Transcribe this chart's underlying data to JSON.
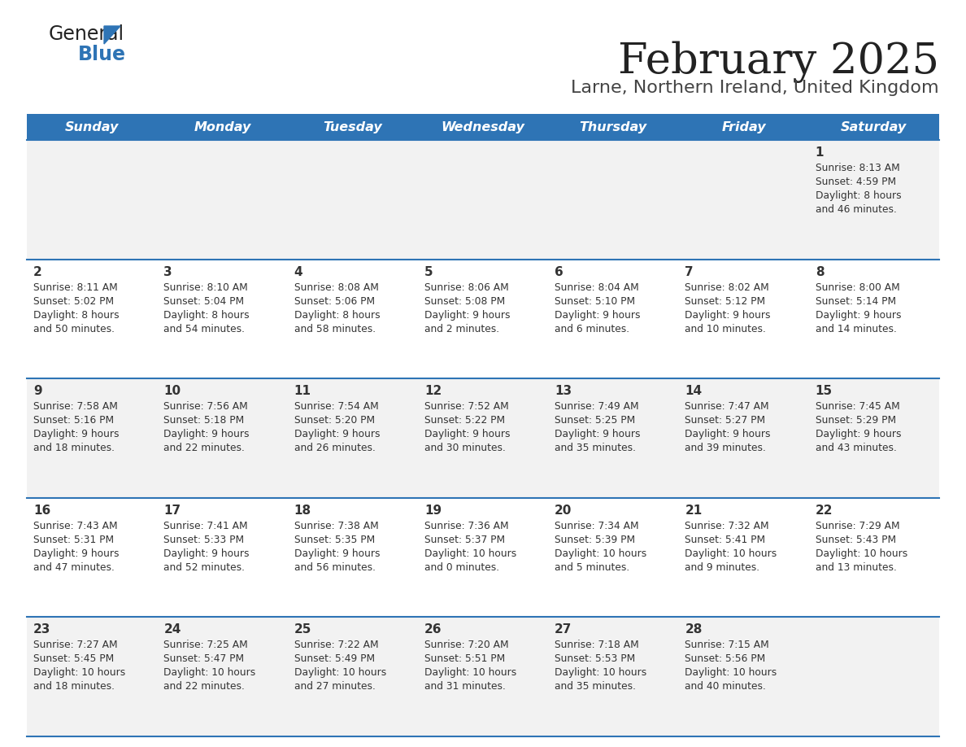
{
  "title": "February 2025",
  "subtitle": "Larne, Northern Ireland, United Kingdom",
  "days_of_week": [
    "Sunday",
    "Monday",
    "Tuesday",
    "Wednesday",
    "Thursday",
    "Friday",
    "Saturday"
  ],
  "header_bg": "#2E74B5",
  "header_text": "#FFFFFF",
  "row_bg_even": "#F2F2F2",
  "row_bg_odd": "#FFFFFF",
  "cell_text": "#333333",
  "separator_color": "#2E74B5",
  "title_color": "#222222",
  "subtitle_color": "#444444",
  "logo_color1": "#222222",
  "logo_color2": "#2E74B5",
  "calendar_data": [
    [
      {
        "day": "",
        "sunrise": "",
        "sunset": "",
        "daylight": ""
      },
      {
        "day": "",
        "sunrise": "",
        "sunset": "",
        "daylight": ""
      },
      {
        "day": "",
        "sunrise": "",
        "sunset": "",
        "daylight": ""
      },
      {
        "day": "",
        "sunrise": "",
        "sunset": "",
        "daylight": ""
      },
      {
        "day": "",
        "sunrise": "",
        "sunset": "",
        "daylight": ""
      },
      {
        "day": "",
        "sunrise": "",
        "sunset": "",
        "daylight": ""
      },
      {
        "day": "1",
        "sunrise": "Sunrise: 8:13 AM",
        "sunset": "Sunset: 4:59 PM",
        "daylight": "Daylight: 8 hours\nand 46 minutes."
      }
    ],
    [
      {
        "day": "2",
        "sunrise": "Sunrise: 8:11 AM",
        "sunset": "Sunset: 5:02 PM",
        "daylight": "Daylight: 8 hours\nand 50 minutes."
      },
      {
        "day": "3",
        "sunrise": "Sunrise: 8:10 AM",
        "sunset": "Sunset: 5:04 PM",
        "daylight": "Daylight: 8 hours\nand 54 minutes."
      },
      {
        "day": "4",
        "sunrise": "Sunrise: 8:08 AM",
        "sunset": "Sunset: 5:06 PM",
        "daylight": "Daylight: 8 hours\nand 58 minutes."
      },
      {
        "day": "5",
        "sunrise": "Sunrise: 8:06 AM",
        "sunset": "Sunset: 5:08 PM",
        "daylight": "Daylight: 9 hours\nand 2 minutes."
      },
      {
        "day": "6",
        "sunrise": "Sunrise: 8:04 AM",
        "sunset": "Sunset: 5:10 PM",
        "daylight": "Daylight: 9 hours\nand 6 minutes."
      },
      {
        "day": "7",
        "sunrise": "Sunrise: 8:02 AM",
        "sunset": "Sunset: 5:12 PM",
        "daylight": "Daylight: 9 hours\nand 10 minutes."
      },
      {
        "day": "8",
        "sunrise": "Sunrise: 8:00 AM",
        "sunset": "Sunset: 5:14 PM",
        "daylight": "Daylight: 9 hours\nand 14 minutes."
      }
    ],
    [
      {
        "day": "9",
        "sunrise": "Sunrise: 7:58 AM",
        "sunset": "Sunset: 5:16 PM",
        "daylight": "Daylight: 9 hours\nand 18 minutes."
      },
      {
        "day": "10",
        "sunrise": "Sunrise: 7:56 AM",
        "sunset": "Sunset: 5:18 PM",
        "daylight": "Daylight: 9 hours\nand 22 minutes."
      },
      {
        "day": "11",
        "sunrise": "Sunrise: 7:54 AM",
        "sunset": "Sunset: 5:20 PM",
        "daylight": "Daylight: 9 hours\nand 26 minutes."
      },
      {
        "day": "12",
        "sunrise": "Sunrise: 7:52 AM",
        "sunset": "Sunset: 5:22 PM",
        "daylight": "Daylight: 9 hours\nand 30 minutes."
      },
      {
        "day": "13",
        "sunrise": "Sunrise: 7:49 AM",
        "sunset": "Sunset: 5:25 PM",
        "daylight": "Daylight: 9 hours\nand 35 minutes."
      },
      {
        "day": "14",
        "sunrise": "Sunrise: 7:47 AM",
        "sunset": "Sunset: 5:27 PM",
        "daylight": "Daylight: 9 hours\nand 39 minutes."
      },
      {
        "day": "15",
        "sunrise": "Sunrise: 7:45 AM",
        "sunset": "Sunset: 5:29 PM",
        "daylight": "Daylight: 9 hours\nand 43 minutes."
      }
    ],
    [
      {
        "day": "16",
        "sunrise": "Sunrise: 7:43 AM",
        "sunset": "Sunset: 5:31 PM",
        "daylight": "Daylight: 9 hours\nand 47 minutes."
      },
      {
        "day": "17",
        "sunrise": "Sunrise: 7:41 AM",
        "sunset": "Sunset: 5:33 PM",
        "daylight": "Daylight: 9 hours\nand 52 minutes."
      },
      {
        "day": "18",
        "sunrise": "Sunrise: 7:38 AM",
        "sunset": "Sunset: 5:35 PM",
        "daylight": "Daylight: 9 hours\nand 56 minutes."
      },
      {
        "day": "19",
        "sunrise": "Sunrise: 7:36 AM",
        "sunset": "Sunset: 5:37 PM",
        "daylight": "Daylight: 10 hours\nand 0 minutes."
      },
      {
        "day": "20",
        "sunrise": "Sunrise: 7:34 AM",
        "sunset": "Sunset: 5:39 PM",
        "daylight": "Daylight: 10 hours\nand 5 minutes."
      },
      {
        "day": "21",
        "sunrise": "Sunrise: 7:32 AM",
        "sunset": "Sunset: 5:41 PM",
        "daylight": "Daylight: 10 hours\nand 9 minutes."
      },
      {
        "day": "22",
        "sunrise": "Sunrise: 7:29 AM",
        "sunset": "Sunset: 5:43 PM",
        "daylight": "Daylight: 10 hours\nand 13 minutes."
      }
    ],
    [
      {
        "day": "23",
        "sunrise": "Sunrise: 7:27 AM",
        "sunset": "Sunset: 5:45 PM",
        "daylight": "Daylight: 10 hours\nand 18 minutes."
      },
      {
        "day": "24",
        "sunrise": "Sunrise: 7:25 AM",
        "sunset": "Sunset: 5:47 PM",
        "daylight": "Daylight: 10 hours\nand 22 minutes."
      },
      {
        "day": "25",
        "sunrise": "Sunrise: 7:22 AM",
        "sunset": "Sunset: 5:49 PM",
        "daylight": "Daylight: 10 hours\nand 27 minutes."
      },
      {
        "day": "26",
        "sunrise": "Sunrise: 7:20 AM",
        "sunset": "Sunset: 5:51 PM",
        "daylight": "Daylight: 10 hours\nand 31 minutes."
      },
      {
        "day": "27",
        "sunrise": "Sunrise: 7:18 AM",
        "sunset": "Sunset: 5:53 PM",
        "daylight": "Daylight: 10 hours\nand 35 minutes."
      },
      {
        "day": "28",
        "sunrise": "Sunrise: 7:15 AM",
        "sunset": "Sunset: 5:56 PM",
        "daylight": "Daylight: 10 hours\nand 40 minutes."
      },
      {
        "day": "",
        "sunrise": "",
        "sunset": "",
        "daylight": ""
      }
    ]
  ]
}
